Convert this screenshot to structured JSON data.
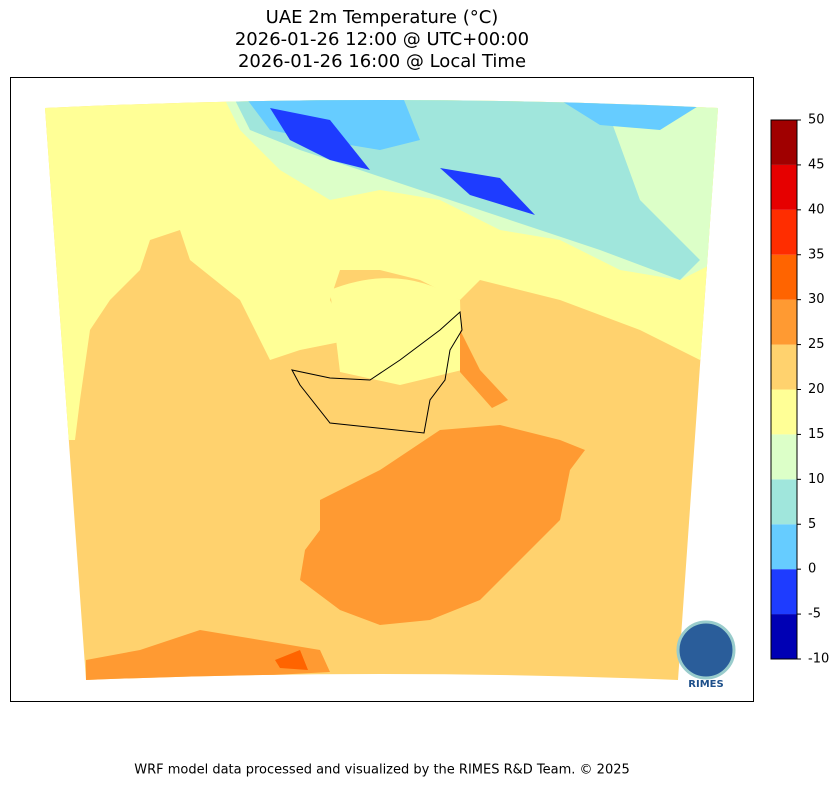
{
  "title": [
    "UAE 2m Temperature (°C)",
    "2026-01-26 12:00 @ UTC+00:00",
    "2026-01-26 16:00 @ Local Time"
  ],
  "colorbar": {
    "lim": [
      -10,
      50
    ],
    "ticks": [
      -10,
      -5,
      0,
      5,
      10,
      15,
      20,
      25,
      30,
      35,
      40,
      45,
      50
    ],
    "colors": [
      "#0000b4",
      "#1e3cff",
      "#66ccff",
      "#a0e6dc",
      "#dcffc8",
      "#ffff96",
      "#ffd26e",
      "#ff9a32",
      "#ff6400",
      "#ff2d00",
      "#e60000",
      "#a00000"
    ]
  },
  "logo": "RIMES",
  "footer": "WRF model data processed and visualized by the RIMES R&D Team. © 2025"
}
